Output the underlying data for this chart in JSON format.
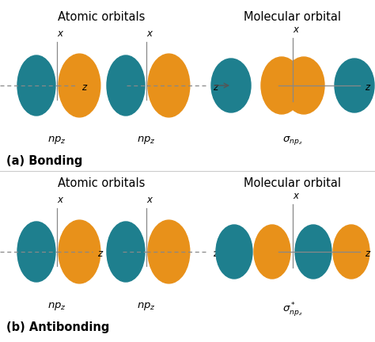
{
  "teal_color": "#1e7f8e",
  "orange_color": "#e8911a",
  "background": "#ffffff",
  "title_bonding": "(a) Bonding",
  "title_antibonding": "(b) Antibonding",
  "header_atomic": "Atomic orbitals",
  "header_molecular": "Molecular orbital",
  "font_size_header": 10.5,
  "font_size_label": 9.5,
  "font_size_section": 10.5,
  "font_size_axis": 9
}
